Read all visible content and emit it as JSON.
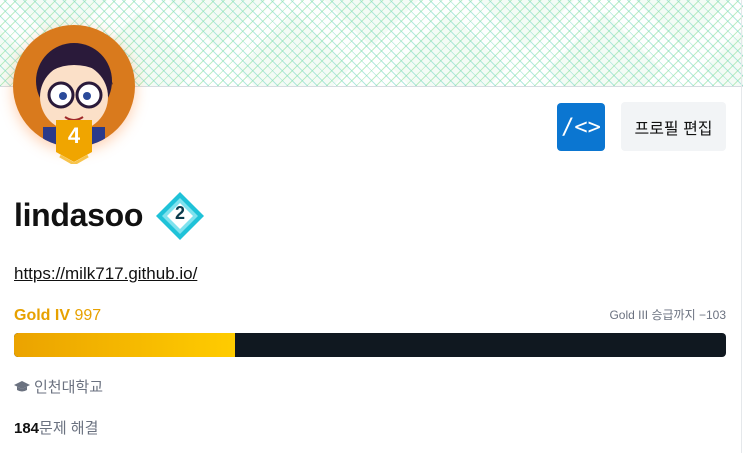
{
  "profile": {
    "username": "lindasoo",
    "homepage_url": "https://milk717.github.io/",
    "tier_badge_number": "4",
    "class_badge_number": "2"
  },
  "buttons": {
    "code_label": "/<>",
    "edit_label": "프로필 편집"
  },
  "rating": {
    "tier": "Gold IV",
    "value": "997",
    "next_tier_text": "Gold III 승급까지 −103",
    "progress_fraction": 0.31
  },
  "school": "인천대학교",
  "solved": {
    "count": "184",
    "label": "문제 해결"
  },
  "icons": {
    "school": "graduation-cap-icon",
    "code": "code-icon"
  },
  "colors": {
    "gold": "#e7a100",
    "accent_blue": "#0b76d1",
    "bar_track": "#101820"
  }
}
